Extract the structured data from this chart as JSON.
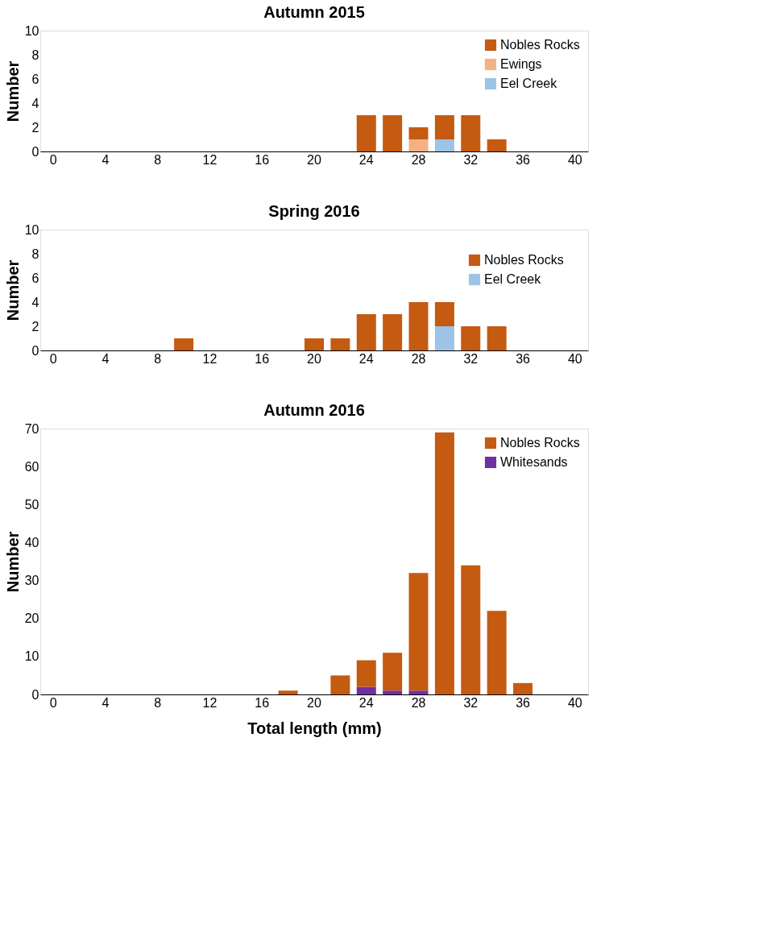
{
  "chart_data": [
    {
      "type": "bar",
      "title": "Autumn 2015",
      "ylabel": "Number",
      "stacked": true,
      "legend": "top right",
      "grid": false,
      "categories": [
        "0",
        null,
        "4",
        null,
        "8",
        null,
        "12",
        null,
        "16",
        null,
        "20",
        null,
        "24",
        null,
        "28",
        null,
        "32",
        null,
        "36",
        null,
        "40"
      ],
      "ylim": [
        0,
        10
      ],
      "yticks": [
        0,
        2,
        4,
        6,
        8,
        10
      ],
      "series": [
        {
          "name": "Eel Creek",
          "color": "#9dc3e6",
          "values": [
            null,
            null,
            null,
            null,
            null,
            null,
            null,
            null,
            null,
            null,
            null,
            null,
            null,
            null,
            null,
            1,
            null,
            null,
            null,
            null,
            null
          ]
        },
        {
          "name": "Ewings",
          "color": "#f4b183",
          "values": [
            null,
            null,
            null,
            null,
            null,
            null,
            null,
            null,
            null,
            null,
            null,
            null,
            null,
            null,
            1,
            null,
            null,
            null,
            null,
            null,
            null
          ]
        },
        {
          "name": "Nobles Rocks",
          "color": "#c55a11",
          "values": [
            null,
            null,
            null,
            null,
            null,
            null,
            null,
            null,
            null,
            null,
            null,
            null,
            3,
            3,
            1,
            2,
            3,
            1,
            null,
            null,
            null
          ]
        }
      ]
    },
    {
      "type": "bar",
      "title": "Spring 2016",
      "ylabel": "Number",
      "stacked": true,
      "legend": "top right",
      "grid": false,
      "categories": [
        "0",
        null,
        "4",
        null,
        "8",
        null,
        "12",
        null,
        "16",
        null,
        "20",
        null,
        "24",
        null,
        "28",
        null,
        "32",
        null,
        "36",
        null,
        "40"
      ],
      "ylim": [
        0,
        10
      ],
      "yticks": [
        0,
        2,
        4,
        6,
        8,
        10
      ],
      "series": [
        {
          "name": "Eel Creek",
          "color": "#9dc3e6",
          "values": [
            null,
            null,
            null,
            null,
            null,
            null,
            null,
            null,
            null,
            null,
            null,
            null,
            null,
            null,
            null,
            2,
            null,
            null,
            null,
            null,
            null
          ]
        },
        {
          "name": "Nobles Rocks",
          "color": "#c55a11",
          "values": [
            null,
            null,
            null,
            null,
            null,
            1,
            null,
            null,
            null,
            null,
            1,
            1,
            3,
            3,
            4,
            2,
            2,
            2,
            null,
            null,
            null
          ]
        }
      ]
    },
    {
      "type": "bar",
      "title": "Autumn 2016",
      "ylabel": "Number",
      "xlabel": "Total length (mm)",
      "stacked": true,
      "legend": "top right",
      "grid": false,
      "categories": [
        "0",
        null,
        "4",
        null,
        "8",
        null,
        "12",
        null,
        "16",
        null,
        "20",
        null,
        "24",
        null,
        "28",
        null,
        "32",
        null,
        "36",
        null,
        "40"
      ],
      "ylim": [
        0,
        70
      ],
      "yticks": [
        0,
        10,
        20,
        30,
        40,
        50,
        60,
        70
      ],
      "series": [
        {
          "name": "Whitesands",
          "color": "#7030a0",
          "values": [
            null,
            null,
            null,
            null,
            null,
            null,
            null,
            null,
            null,
            null,
            null,
            null,
            2,
            1,
            1,
            null,
            null,
            null,
            null,
            null,
            null
          ]
        },
        {
          "name": "Nobles Rocks",
          "color": "#c55a11",
          "values": [
            null,
            null,
            null,
            null,
            null,
            null,
            null,
            null,
            null,
            1,
            null,
            5,
            7,
            10,
            31,
            69,
            34,
            22,
            3,
            null,
            null
          ]
        }
      ]
    }
  ]
}
